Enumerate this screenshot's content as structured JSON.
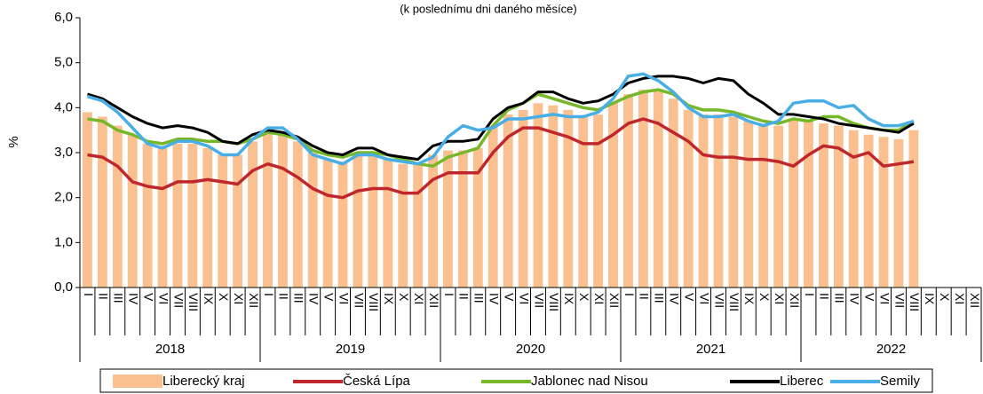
{
  "chart_data": {
    "type": "bar-line",
    "subtitle": "(k poslednímu dni daného měsíce)",
    "ylabel": "%",
    "categories": [
      "I",
      "II",
      "III",
      "IV",
      "V",
      "VI",
      "VII",
      "VIII",
      "IX",
      "X",
      "XI",
      "XII",
      "I",
      "II",
      "III",
      "IV",
      "V",
      "VI",
      "VII",
      "VIII",
      "IX",
      "X",
      "XI",
      "XII",
      "I",
      "II",
      "III",
      "IV",
      "V",
      "VI",
      "VII",
      "VIII",
      "IX",
      "X",
      "XI",
      "XII",
      "I",
      "II",
      "III",
      "IV",
      "V",
      "VI",
      "VII",
      "VIII",
      "IX",
      "X",
      "XI",
      "XII",
      "I",
      "II",
      "III",
      "IV",
      "V",
      "VI",
      "VII",
      "VIII",
      "IX",
      "X",
      "XI",
      "XII"
    ],
    "years": [
      "2018",
      "2019",
      "2020",
      "2021",
      "2022"
    ],
    "ylim": [
      0,
      6
    ],
    "yticks": [
      {
        "value": 0,
        "label": "0,0"
      },
      {
        "value": 1,
        "label": "1,0"
      },
      {
        "value": 2,
        "label": "2,0"
      },
      {
        "value": 3,
        "label": "3,0"
      },
      {
        "value": 4,
        "label": "4,0"
      },
      {
        "value": 5,
        "label": "5,0"
      },
      {
        "value": 6,
        "label": "6,0"
      }
    ],
    "series": [
      {
        "name": "Liberecký kraj",
        "kind": "bar",
        "color": "#fac08f",
        "values": [
          3.9,
          3.8,
          3.6,
          3.4,
          3.2,
          3.1,
          3.2,
          3.2,
          3.1,
          2.95,
          2.95,
          3.25,
          3.45,
          3.4,
          3.25,
          3.0,
          2.85,
          2.8,
          2.95,
          2.95,
          2.85,
          2.75,
          2.75,
          2.95,
          3.05,
          3.05,
          3.1,
          3.6,
          3.85,
          3.95,
          4.1,
          4.05,
          3.95,
          3.8,
          3.85,
          4.1,
          4.3,
          4.4,
          4.4,
          4.2,
          3.95,
          3.85,
          3.85,
          3.8,
          3.7,
          3.6,
          3.6,
          3.75,
          3.7,
          3.65,
          3.6,
          3.5,
          3.4,
          3.35,
          3.3,
          3.5,
          null,
          null,
          null,
          null
        ]
      },
      {
        "name": "Česká Lípa",
        "kind": "line",
        "color": "#c0272d",
        "values": [
          2.95,
          2.9,
          2.7,
          2.35,
          2.25,
          2.2,
          2.35,
          2.35,
          2.4,
          2.35,
          2.3,
          2.6,
          2.75,
          2.65,
          2.45,
          2.2,
          2.05,
          2.0,
          2.15,
          2.2,
          2.2,
          2.1,
          2.1,
          2.4,
          2.55,
          2.55,
          2.55,
          3.0,
          3.35,
          3.55,
          3.55,
          3.45,
          3.35,
          3.2,
          3.2,
          3.4,
          3.65,
          3.75,
          3.65,
          3.45,
          3.25,
          2.95,
          2.9,
          2.9,
          2.85,
          2.85,
          2.8,
          2.7,
          2.95,
          3.15,
          3.1,
          2.9,
          3.0,
          2.7,
          2.75,
          2.8,
          null,
          null,
          null,
          null
        ]
      },
      {
        "name": "Jablonec nad Nisou",
        "kind": "line",
        "color": "#77b82a",
        "values": [
          3.75,
          3.7,
          3.5,
          3.4,
          3.25,
          3.2,
          3.3,
          3.3,
          3.25,
          3.25,
          3.2,
          3.3,
          3.45,
          3.4,
          3.3,
          3.05,
          2.95,
          2.9,
          3.0,
          3.0,
          2.95,
          2.85,
          2.75,
          2.7,
          2.9,
          3.0,
          3.1,
          3.6,
          3.95,
          4.1,
          4.3,
          4.2,
          4.1,
          4.0,
          3.95,
          4.1,
          4.25,
          4.35,
          4.4,
          4.3,
          4.05,
          3.95,
          3.95,
          3.9,
          3.8,
          3.7,
          3.65,
          3.75,
          3.7,
          3.8,
          3.8,
          3.65,
          3.55,
          3.5,
          3.5,
          3.7,
          null,
          null,
          null,
          null
        ]
      },
      {
        "name": "Liberec",
        "kind": "line",
        "color": "#000000",
        "values": [
          4.3,
          4.2,
          4.0,
          3.8,
          3.65,
          3.55,
          3.6,
          3.55,
          3.45,
          3.25,
          3.2,
          3.4,
          3.5,
          3.45,
          3.35,
          3.15,
          3.0,
          2.95,
          3.1,
          3.1,
          2.95,
          2.9,
          2.85,
          3.15,
          3.25,
          3.25,
          3.3,
          3.75,
          4.0,
          4.1,
          4.35,
          4.35,
          4.2,
          4.1,
          4.15,
          4.3,
          4.55,
          4.65,
          4.7,
          4.7,
          4.65,
          4.55,
          4.65,
          4.6,
          4.3,
          4.1,
          3.85,
          3.85,
          3.8,
          3.75,
          3.65,
          3.6,
          3.55,
          3.5,
          3.45,
          3.65,
          null,
          null,
          null,
          null
        ]
      },
      {
        "name": "Semily",
        "kind": "line",
        "color": "#4aaee6",
        "values": [
          4.25,
          4.15,
          3.9,
          3.55,
          3.2,
          3.1,
          3.25,
          3.25,
          3.15,
          2.95,
          2.95,
          3.3,
          3.55,
          3.55,
          3.3,
          2.95,
          2.85,
          2.75,
          2.95,
          2.95,
          2.85,
          2.8,
          2.75,
          2.9,
          3.35,
          3.6,
          3.5,
          3.55,
          3.75,
          3.75,
          3.8,
          3.85,
          3.8,
          3.8,
          3.9,
          4.2,
          4.7,
          4.75,
          4.6,
          4.35,
          4.0,
          3.8,
          3.8,
          3.85,
          3.7,
          3.6,
          3.7,
          4.1,
          4.15,
          4.15,
          4.0,
          4.05,
          3.75,
          3.6,
          3.6,
          3.7,
          null,
          null,
          null,
          null
        ]
      }
    ]
  }
}
